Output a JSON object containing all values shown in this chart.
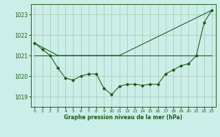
{
  "background_color": "#cceee8",
  "grid_color": "#aaccbb",
  "line_color_main": "#1a5c1a",
  "title": "Graphe pression niveau de la mer (hPa)",
  "xlim": [
    -0.5,
    23.5
  ],
  "ylim": [
    1018.5,
    1023.5
  ],
  "yticks": [
    1019,
    1020,
    1021,
    1022,
    1023
  ],
  "xticks": [
    0,
    1,
    2,
    3,
    4,
    5,
    6,
    7,
    8,
    9,
    10,
    11,
    12,
    13,
    14,
    15,
    16,
    17,
    18,
    19,
    20,
    21,
    22,
    23
  ],
  "series1_x": [
    0,
    1,
    2,
    3,
    4,
    5,
    6,
    7,
    8,
    9,
    10,
    11,
    12,
    13,
    14,
    15,
    16,
    17,
    18,
    19,
    20,
    21,
    22,
    23
  ],
  "series1_y": [
    1021.6,
    1021.3,
    1021.0,
    1020.4,
    1019.9,
    1019.8,
    1020.0,
    1020.1,
    1020.1,
    1019.4,
    1019.1,
    1019.5,
    1019.6,
    1019.6,
    1019.55,
    1019.6,
    1019.6,
    1020.1,
    1020.3,
    1020.5,
    1020.6,
    1021.0,
    1022.6,
    1023.2
  ],
  "series2_x": [
    0,
    3,
    11,
    23
  ],
  "series2_y": [
    1021.6,
    1021.0,
    1021.0,
    1023.2
  ],
  "series3_x": [
    0,
    23
  ],
  "series3_y": [
    1021.0,
    1021.0
  ]
}
